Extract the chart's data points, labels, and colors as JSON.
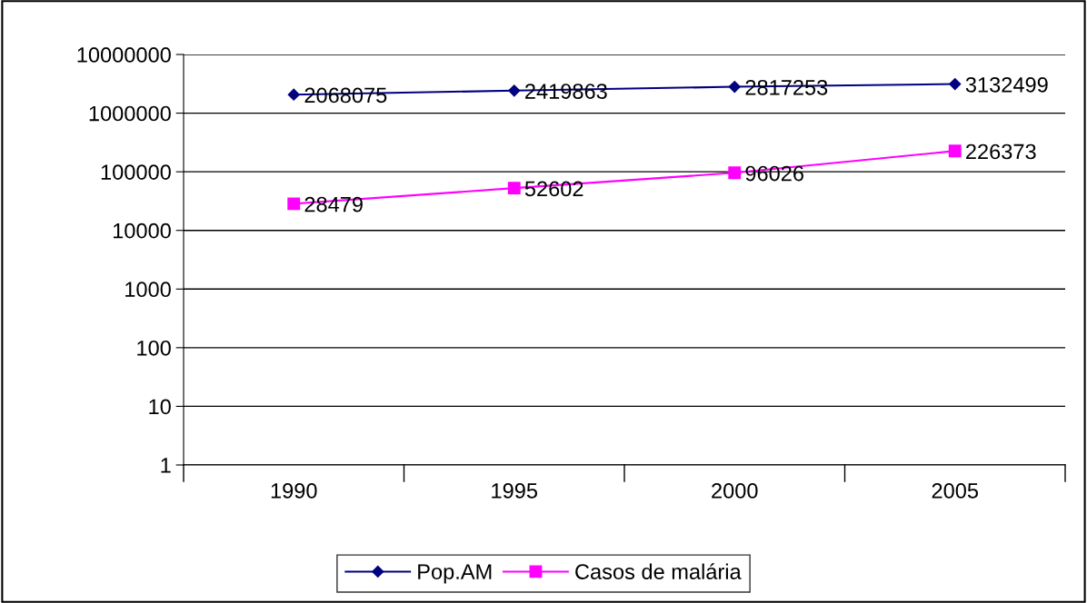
{
  "chart_data": {
    "type": "line",
    "categories": [
      "1990",
      "1995",
      "2000",
      "2005"
    ],
    "series": [
      {
        "name": "Pop.AM",
        "color": "#000080",
        "marker": "diamond",
        "values": [
          2068075,
          2419863,
          2817253,
          3132499
        ]
      },
      {
        "name": "Casos de malária",
        "color": "#ff00ff",
        "marker": "square",
        "values": [
          28479,
          52602,
          96026,
          226373
        ]
      }
    ],
    "log": "y",
    "ylim": [
      1,
      10000000
    ],
    "yticks": [
      1,
      10,
      100,
      1000,
      10000,
      100000,
      1000000,
      10000000
    ],
    "grid": "y",
    "legend": "bottom",
    "data_labels": true,
    "line_style": "solid"
  }
}
